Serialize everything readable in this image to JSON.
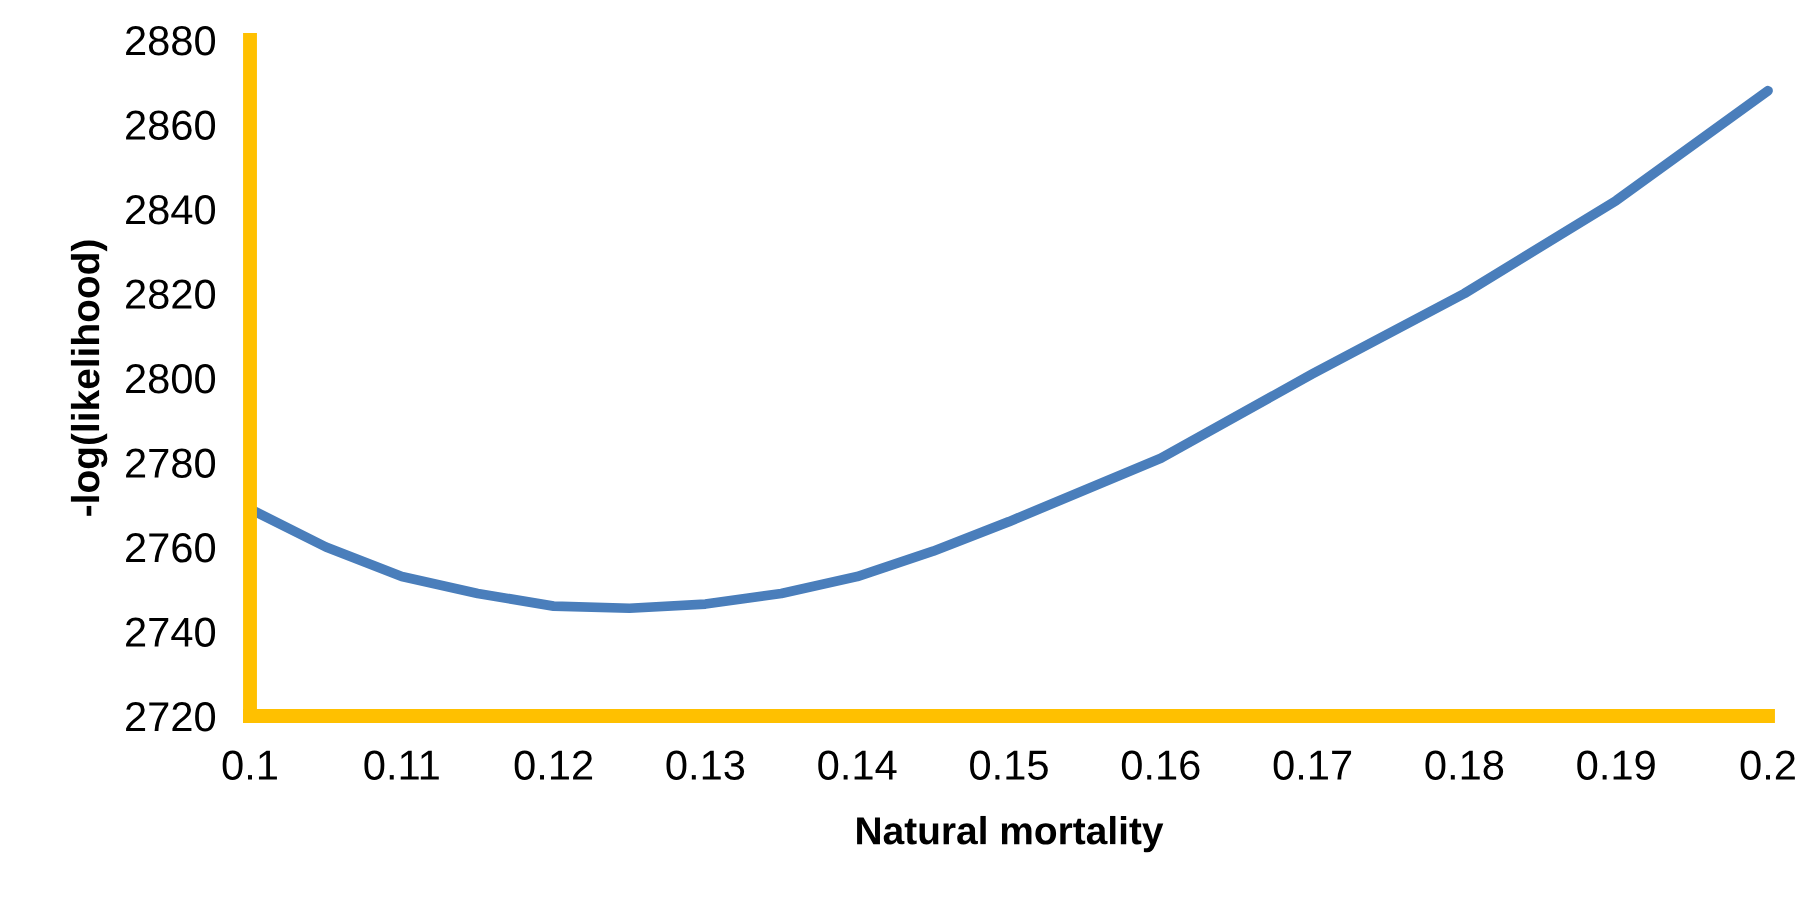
{
  "chart_data": {
    "type": "line",
    "xlabel": "Natural mortality",
    "ylabel": "-log(likelihood)",
    "x": [
      0.1,
      0.105,
      0.11,
      0.115,
      0.12,
      0.125,
      0.13,
      0.135,
      0.14,
      0.145,
      0.15,
      0.16,
      0.17,
      0.18,
      0.19,
      0.2
    ],
    "series": [
      {
        "color": "#4a7ebb",
        "values": [
          2769,
          2760,
          2753,
          2749,
          2746,
          2745.5,
          2746.5,
          2749,
          2753,
          2759,
          2766,
          2781,
          2801,
          2820,
          2842,
          2868
        ]
      }
    ],
    "xlim": [
      0.1,
      0.2
    ],
    "xticks": [
      0.1,
      0.11,
      0.12,
      0.13,
      0.14,
      0.15,
      0.16,
      0.17,
      0.18,
      0.19,
      0.2
    ],
    "ylim": [
      2720,
      2880
    ],
    "yticks": [
      2720,
      2740,
      2760,
      2780,
      2800,
      2820,
      2840,
      2860,
      2880
    ],
    "grid": false,
    "legend": false,
    "marker": "none",
    "line_style": "solid"
  }
}
